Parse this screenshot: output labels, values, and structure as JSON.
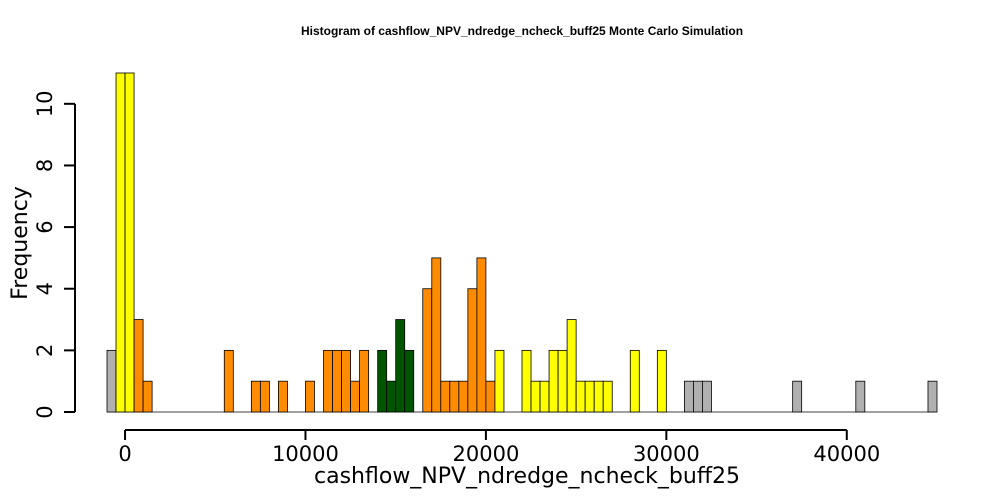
{
  "chart_data": {
    "type": "bar",
    "title": "Histogram of  cashflow_NPV_ndredge_ncheck_buff25  Monte Carlo Simulation",
    "xlabel": "cashflow_NPV_ndredge_ncheck_buff25",
    "ylabel": "Frequency",
    "xlim": [
      -1000,
      45000
    ],
    "ylim": [
      0,
      11
    ],
    "bin_width": 500,
    "x_ticks": [
      0,
      10000,
      20000,
      30000,
      40000
    ],
    "x_tick_labels": [
      "0",
      "10000",
      "20000",
      "30000",
      "40000"
    ],
    "y_ticks": [
      0,
      2,
      4,
      6,
      8,
      10
    ],
    "y_tick_labels": [
      "0",
      "2",
      "4",
      "6",
      "8",
      "10"
    ],
    "grid": false,
    "bins": [
      {
        "x0": -1000,
        "count": 2,
        "color": "#b0b0b0"
      },
      {
        "x0": -500,
        "count": 11,
        "color": "#ffff00"
      },
      {
        "x0": 0,
        "count": 11,
        "color": "#ffff00"
      },
      {
        "x0": 500,
        "count": 3,
        "color": "#ff8c00"
      },
      {
        "x0": 1000,
        "count": 1,
        "color": "#ff8c00"
      },
      {
        "x0": 5500,
        "count": 2,
        "color": "#ff8c00"
      },
      {
        "x0": 7000,
        "count": 1,
        "color": "#ff8c00"
      },
      {
        "x0": 7500,
        "count": 1,
        "color": "#ff8c00"
      },
      {
        "x0": 8500,
        "count": 1,
        "color": "#ff8c00"
      },
      {
        "x0": 10000,
        "count": 1,
        "color": "#ff8c00"
      },
      {
        "x0": 11000,
        "count": 2,
        "color": "#ff8c00"
      },
      {
        "x0": 11500,
        "count": 2,
        "color": "#ff8c00"
      },
      {
        "x0": 12000,
        "count": 2,
        "color": "#ff8c00"
      },
      {
        "x0": 12500,
        "count": 1,
        "color": "#ff8c00"
      },
      {
        "x0": 13000,
        "count": 2,
        "color": "#ff8c00"
      },
      {
        "x0": 14000,
        "count": 2,
        "color": "#005500"
      },
      {
        "x0": 14500,
        "count": 1,
        "color": "#005500"
      },
      {
        "x0": 15000,
        "count": 3,
        "color": "#005500"
      },
      {
        "x0": 15500,
        "count": 2,
        "color": "#005500"
      },
      {
        "x0": 16500,
        "count": 4,
        "color": "#ff8c00"
      },
      {
        "x0": 17000,
        "count": 5,
        "color": "#ff8c00"
      },
      {
        "x0": 17500,
        "count": 1,
        "color": "#ff8c00"
      },
      {
        "x0": 18000,
        "count": 1,
        "color": "#ff8c00"
      },
      {
        "x0": 18500,
        "count": 1,
        "color": "#ff8c00"
      },
      {
        "x0": 19000,
        "count": 4,
        "color": "#ff8c00"
      },
      {
        "x0": 19500,
        "count": 5,
        "color": "#ff8c00"
      },
      {
        "x0": 20000,
        "count": 1,
        "color": "#ff8c00"
      },
      {
        "x0": 20500,
        "count": 2,
        "color": "#ffff00"
      },
      {
        "x0": 22000,
        "count": 2,
        "color": "#ffff00"
      },
      {
        "x0": 22500,
        "count": 1,
        "color": "#ffff00"
      },
      {
        "x0": 23000,
        "count": 1,
        "color": "#ffff00"
      },
      {
        "x0": 23500,
        "count": 2,
        "color": "#ffff00"
      },
      {
        "x0": 24000,
        "count": 2,
        "color": "#ffff00"
      },
      {
        "x0": 24500,
        "count": 3,
        "color": "#ffff00"
      },
      {
        "x0": 25000,
        "count": 1,
        "color": "#ffff00"
      },
      {
        "x0": 25500,
        "count": 1,
        "color": "#ffff00"
      },
      {
        "x0": 26000,
        "count": 1,
        "color": "#ffff00"
      },
      {
        "x0": 26500,
        "count": 1,
        "color": "#ffff00"
      },
      {
        "x0": 28000,
        "count": 2,
        "color": "#ffff00"
      },
      {
        "x0": 29500,
        "count": 2,
        "color": "#ffff00"
      },
      {
        "x0": 31000,
        "count": 1,
        "color": "#b0b0b0"
      },
      {
        "x0": 31500,
        "count": 1,
        "color": "#b0b0b0"
      },
      {
        "x0": 32000,
        "count": 1,
        "color": "#b0b0b0"
      },
      {
        "x0": 37000,
        "count": 1,
        "color": "#b0b0b0"
      },
      {
        "x0": 40500,
        "count": 1,
        "color": "#b0b0b0"
      },
      {
        "x0": 44500,
        "count": 1,
        "color": "#b0b0b0"
      }
    ]
  }
}
